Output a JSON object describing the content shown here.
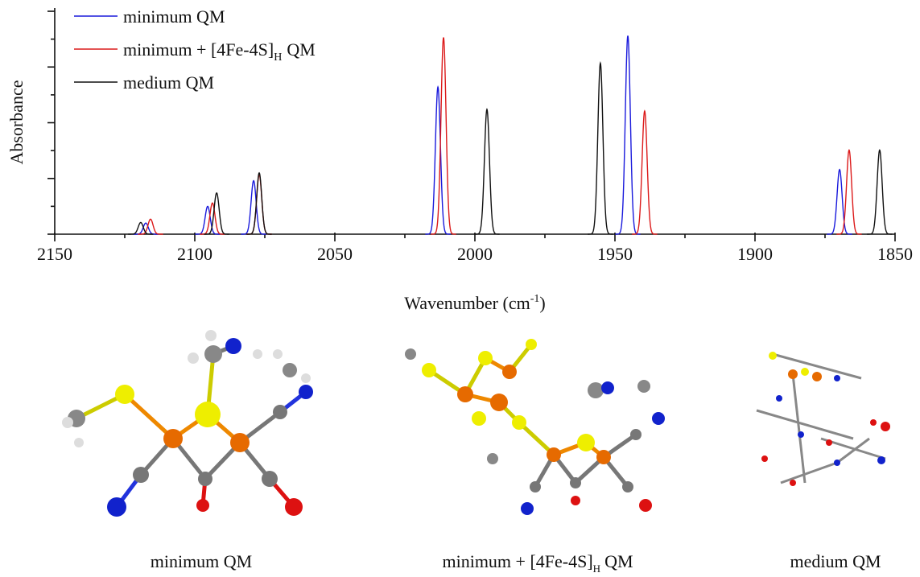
{
  "chart_data": {
    "type": "spectrum",
    "y_label": "Absorbance",
    "x_label": "Wavenumber (cm",
    "x_label_superscript": "-1",
    "x_label_suffix": ")",
    "xlim": [
      2150,
      1850
    ],
    "xticks": [
      2150,
      2100,
      2050,
      2000,
      1950,
      1900,
      1850
    ],
    "xminorticks": [
      2125,
      2075,
      2025,
      1975,
      1925,
      1875
    ],
    "ylim": [
      0,
      4
    ],
    "yticks": [
      0,
      1,
      2,
      3,
      4
    ],
    "yminorticks": [
      0.5,
      1.5,
      2.5,
      3.5
    ],
    "legend": "upper left",
    "series": [
      {
        "name": "minimum QM",
        "color": "#1a1adc",
        "x": [
          2117.5,
          2095.4,
          2079,
          2013.2,
          1945.4,
          1869.8
        ],
        "values": [
          0.2,
          0.5,
          0.96,
          2.64,
          3.56,
          1.16
        ]
      },
      {
        "name": "minimum + [4Fe-4S]",
        "name_subscript": "H",
        "name_suffix": "QM",
        "color": "#dc1a1a",
        "x": [
          2115.8,
          2093.7,
          2077,
          2011.2,
          1939.4,
          1866.4
        ],
        "values": [
          0.27,
          0.56,
          1.07,
          3.53,
          2.21,
          1.51
        ]
      },
      {
        "name": "medium QM",
        "color": "#111111",
        "x": [
          2119.3,
          2092.2,
          2077,
          1995.7,
          1955.2,
          1855.5
        ],
        "values": [
          0.21,
          0.74,
          1.1,
          2.24,
          3.07,
          1.51
        ]
      }
    ]
  },
  "panels": [
    {
      "caption": "minimum QM"
    },
    {
      "caption": "minimum + [4Fe-4S]",
      "caption_subscript": "H",
      "caption_suffix": "QM"
    },
    {
      "caption": "medium QM"
    }
  ]
}
